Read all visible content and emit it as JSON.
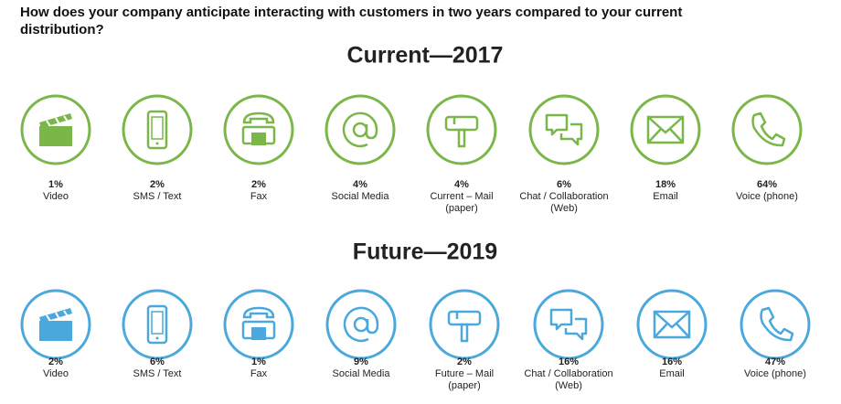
{
  "header": {
    "question": "How does your company anticipate interacting with customers in two years compared to your current distribution?"
  },
  "sections": [
    {
      "title": "Current—2017",
      "color": "#7ab648",
      "items": [
        {
          "share": "1%",
          "label": "Video"
        },
        {
          "share": "2%",
          "label": "SMS / Text"
        },
        {
          "share": "2%",
          "label": "Fax"
        },
        {
          "share": "4%",
          "label": "Social Media"
        },
        {
          "share": "4%",
          "label": "Current – Mail\n(paper)"
        },
        {
          "share": "6%",
          "label": "Chat / Collaboration\n(Web)"
        },
        {
          "share": "18%",
          "label": "Email"
        },
        {
          "share": "64%",
          "label": "Voice (phone)"
        }
      ]
    },
    {
      "title": "Future—2019",
      "color": "#4aa8dc",
      "items": [
        {
          "share": "2%",
          "label": "Video"
        },
        {
          "share": "6%",
          "label": "SMS / Text"
        },
        {
          "share": "1%",
          "label": "Fax"
        },
        {
          "share": "9%",
          "label": "Social Media"
        },
        {
          "share": "2%",
          "label": "Future – Mail\n(paper)"
        },
        {
          "share": "16%",
          "label": "Chat / Collaboration\n(Web)"
        },
        {
          "share": "16%",
          "label": "Email"
        },
        {
          "share": "47%",
          "label": "Voice (phone)"
        }
      ]
    }
  ]
}
